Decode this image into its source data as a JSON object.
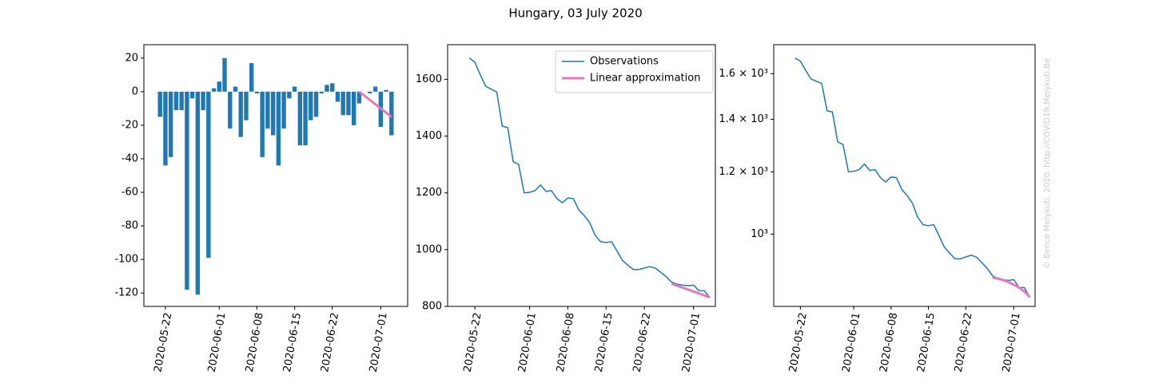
{
  "title": "Hungary, 03 July 2020",
  "credit": "© Bence Melykuti, 2020. http://COVID19.Melykuti.Be",
  "chart_data": [
    {
      "type": "bar",
      "xlim": [
        "2020-05-18",
        "2020-07-06"
      ],
      "xticks": [
        "2020-05-22",
        "2020-06-01",
        "2020-06-08",
        "2020-06-15",
        "2020-06-22",
        "2020-07-01"
      ],
      "ylim": [
        -128,
        28
      ],
      "yticks": [
        20,
        0,
        -20,
        -40,
        -60,
        -80,
        -100,
        -120
      ],
      "series": [
        {
          "type": "bar",
          "color": "#1f77b4",
          "x": [
            "2020-05-21",
            "2020-05-22",
            "2020-05-23",
            "2020-05-24",
            "2020-05-25",
            "2020-05-26",
            "2020-05-27",
            "2020-05-28",
            "2020-05-29",
            "2020-05-30",
            "2020-05-31",
            "2020-06-01",
            "2020-06-02",
            "2020-06-03",
            "2020-06-04",
            "2020-06-05",
            "2020-06-06",
            "2020-06-07",
            "2020-06-08",
            "2020-06-09",
            "2020-06-10",
            "2020-06-11",
            "2020-06-12",
            "2020-06-13",
            "2020-06-14",
            "2020-06-15",
            "2020-06-16",
            "2020-06-17",
            "2020-06-18",
            "2020-06-19",
            "2020-06-20",
            "2020-06-21",
            "2020-06-22",
            "2020-06-23",
            "2020-06-24",
            "2020-06-25",
            "2020-06-26",
            "2020-06-27",
            "2020-06-28",
            "2020-06-29",
            "2020-06-30",
            "2020-07-01",
            "2020-07-02",
            "2020-07-03"
          ],
          "values": [
            -15,
            -44,
            -39,
            -11,
            -11,
            -118,
            -4,
            -121,
            -11,
            -99,
            2,
            6,
            20,
            -22,
            3,
            -27,
            -17,
            17,
            -1,
            -39,
            -22,
            -26,
            -44,
            -22,
            -4,
            3,
            -32,
            -32,
            -17,
            -15,
            -1,
            4,
            5,
            -6,
            -14,
            -14,
            -20,
            -7,
            0,
            -1,
            3,
            -21,
            1,
            -26
          ]
        },
        {
          "type": "line",
          "color": "#e377c2",
          "width": 3,
          "x": [
            "2020-06-27",
            "2020-07-03"
          ],
          "values": [
            0,
            -15
          ]
        }
      ]
    },
    {
      "type": "line",
      "xlim": [
        "2020-05-17",
        "2020-07-05"
      ],
      "xticks": [
        "2020-05-22",
        "2020-06-01",
        "2020-06-08",
        "2020-06-15",
        "2020-06-22",
        "2020-07-01"
      ],
      "ylim": [
        800,
        1722
      ],
      "yticks": [
        800,
        1000,
        1200,
        1400,
        1600
      ],
      "legend": "upper right",
      "series": [
        {
          "type": "line",
          "name": "Observations",
          "color": "#1f77b4",
          "width": 1.5,
          "x": [
            "2020-05-21",
            "2020-05-22",
            "2020-05-23",
            "2020-05-24",
            "2020-05-25",
            "2020-05-26",
            "2020-05-27",
            "2020-05-28",
            "2020-05-29",
            "2020-05-30",
            "2020-05-31",
            "2020-06-01",
            "2020-06-02",
            "2020-06-03",
            "2020-06-04",
            "2020-06-05",
            "2020-06-06",
            "2020-06-07",
            "2020-06-08",
            "2020-06-09",
            "2020-06-10",
            "2020-06-11",
            "2020-06-12",
            "2020-06-13",
            "2020-06-14",
            "2020-06-15",
            "2020-06-16",
            "2020-06-17",
            "2020-06-18",
            "2020-06-19",
            "2020-06-20",
            "2020-06-21",
            "2020-06-22",
            "2020-06-23",
            "2020-06-24",
            "2020-06-25",
            "2020-06-26",
            "2020-06-27",
            "2020-06-28",
            "2020-06-29",
            "2020-06-30",
            "2020-07-01",
            "2020-07-02",
            "2020-07-03",
            "2020-07-04"
          ],
          "values": [
            1675,
            1660,
            1615,
            1575,
            1565,
            1555,
            1435,
            1430,
            1310,
            1300,
            1200,
            1202,
            1208,
            1228,
            1205,
            1208,
            1180,
            1165,
            1182,
            1180,
            1140,
            1120,
            1095,
            1050,
            1028,
            1025,
            1028,
            995,
            962,
            945,
            930,
            930,
            935,
            940,
            935,
            920,
            905,
            885,
            878,
            875,
            873,
            875,
            855,
            855,
            830
          ]
        },
        {
          "type": "line",
          "name": "Linear approximation",
          "color": "#e377c2",
          "width": 3,
          "x": [
            "2020-06-27",
            "2020-07-04"
          ],
          "values": [
            880,
            832
          ]
        }
      ]
    },
    {
      "type": "line",
      "xlim": [
        "2020-05-17",
        "2020-07-05"
      ],
      "xticks": [
        "2020-05-22",
        "2020-06-01",
        "2020-06-08",
        "2020-06-15",
        "2020-06-22",
        "2020-07-01"
      ],
      "ylim": [
        809,
        1742
      ],
      "log_y": true,
      "yticks": [
        {
          "value": 1000,
          "label": "10³"
        },
        {
          "value": 1200,
          "label": "1.2 × 10³"
        },
        {
          "value": 1400,
          "label": "1.4 × 10³"
        },
        {
          "value": 1600,
          "label": "1.6 × 10³"
        }
      ],
      "series": [
        {
          "type": "line",
          "color": "#1f77b4",
          "width": 1.5,
          "x": [
            "2020-05-21",
            "2020-05-22",
            "2020-05-23",
            "2020-05-24",
            "2020-05-25",
            "2020-05-26",
            "2020-05-27",
            "2020-05-28",
            "2020-05-29",
            "2020-05-30",
            "2020-05-31",
            "2020-06-01",
            "2020-06-02",
            "2020-06-03",
            "2020-06-04",
            "2020-06-05",
            "2020-06-06",
            "2020-06-07",
            "2020-06-08",
            "2020-06-09",
            "2020-06-10",
            "2020-06-11",
            "2020-06-12",
            "2020-06-13",
            "2020-06-14",
            "2020-06-15",
            "2020-06-16",
            "2020-06-17",
            "2020-06-18",
            "2020-06-19",
            "2020-06-20",
            "2020-06-21",
            "2020-06-22",
            "2020-06-23",
            "2020-06-24",
            "2020-06-25",
            "2020-06-26",
            "2020-06-27",
            "2020-06-28",
            "2020-06-29",
            "2020-06-30",
            "2020-07-01",
            "2020-07-02",
            "2020-07-03",
            "2020-07-04"
          ],
          "values": [
            1675,
            1660,
            1615,
            1575,
            1565,
            1555,
            1435,
            1430,
            1310,
            1300,
            1200,
            1202,
            1208,
            1228,
            1205,
            1208,
            1180,
            1165,
            1182,
            1180,
            1140,
            1120,
            1095,
            1050,
            1028,
            1025,
            1028,
            995,
            962,
            945,
            930,
            930,
            935,
            940,
            935,
            920,
            905,
            885,
            878,
            875,
            873,
            875,
            855,
            855,
            830
          ]
        },
        {
          "type": "line",
          "color": "#e377c2",
          "width": 3,
          "x": [
            "2020-06-27",
            "2020-06-28",
            "2020-06-29",
            "2020-06-30",
            "2020-07-01",
            "2020-07-02",
            "2020-07-03",
            "2020-07-04"
          ],
          "values": [
            880,
            878,
            874,
            869,
            862,
            855,
            845,
            832
          ]
        }
      ]
    }
  ]
}
